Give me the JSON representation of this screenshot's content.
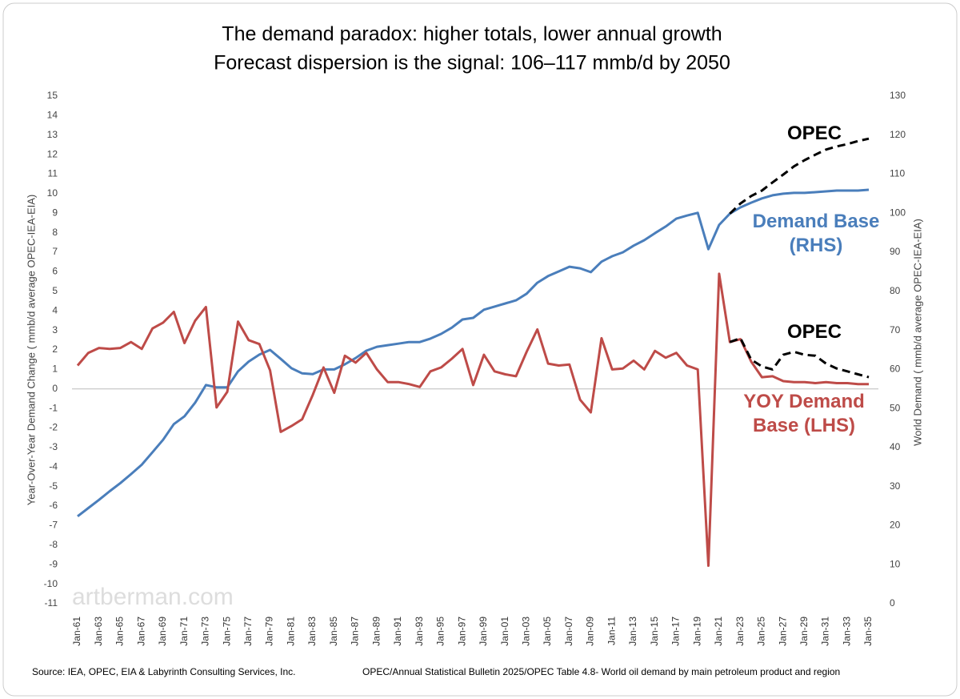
{
  "chart_data": {
    "type": "line",
    "title": "The demand paradox: higher totals, lower annual growth",
    "subtitle": "Forecast dispersion is the signal: 106–117 mmb/d by 2050",
    "y_label": "Year-Over-Year Demand Change ( mmb/d average OPEC-IEA-EIA)",
    "y2_label": "World Demand ( mmb/d average OPEC-IEA-EIA)",
    "watermark": "artberman.com",
    "source_left": "Source: IEA, OPEC, EIA  & Labyrinth Consulting Services, Inc.",
    "source_right": "OPEC/Annual Statistical Bulletin 2025/OPEC Table 4.8- World oil demand by main petroleum product and region",
    "categories": [
      "Jan-61",
      null,
      "Jan-63",
      null,
      "Jan-65",
      null,
      "Jan-67",
      null,
      "Jan-69",
      null,
      "Jan-71",
      null,
      "Jan-73",
      null,
      "Jan-75",
      null,
      "Jan-77",
      null,
      "Jan-79",
      null,
      "Jan-81",
      null,
      "Jan-83",
      null,
      "Jan-85",
      null,
      "Jan-87",
      null,
      "Jan-89",
      null,
      "Jan-91",
      null,
      "Jan-93",
      null,
      "Jan-95",
      null,
      "Jan-97",
      null,
      "Jan-99",
      null,
      "Jan-01",
      null,
      "Jan-03",
      null,
      "Jan-05",
      null,
      "Jan-07",
      null,
      "Jan-09",
      null,
      "Jan-11",
      null,
      "Jan-13",
      null,
      "Jan-15",
      null,
      "Jan-17",
      null,
      "Jan-19",
      null,
      "Jan-21",
      null,
      "Jan-23",
      null,
      "Jan-25",
      null,
      "Jan-27",
      null,
      "Jan-29",
      null,
      "Jan-31",
      null,
      "Jan-33",
      null,
      "Jan-35"
    ],
    "ylim": [
      -11,
      15
    ],
    "yticks": [
      -11,
      -10,
      -9,
      -8,
      -7,
      -6,
      -5,
      -4,
      -3,
      -2,
      -1,
      0,
      1,
      2,
      3,
      4,
      5,
      6,
      7,
      8,
      9,
      10,
      11,
      12,
      13,
      14,
      15
    ],
    "y2lim": [
      0,
      130
    ],
    "y2ticks": [
      0,
      10,
      20,
      30,
      40,
      50,
      60,
      70,
      80,
      90,
      100,
      110,
      120,
      130
    ],
    "series": [
      {
        "name": "Demand Base (RHS)",
        "color": "#4a7ebb",
        "axis": "y2",
        "values": [
          22.4,
          24.5,
          26.6,
          28.8,
          30.9,
          33.2,
          35.6,
          38.8,
          42.0,
          46.0,
          48.0,
          51.5,
          56.0,
          55.4,
          55.4,
          59.5,
          62.0,
          63.8,
          65.0,
          62.7,
          60.3,
          59.0,
          58.8,
          60.0,
          60.0,
          61.3,
          62.9,
          64.8,
          65.8,
          66.2,
          66.6,
          67.0,
          67.0,
          67.9,
          69.1,
          70.7,
          72.8,
          73.2,
          75.3,
          76.1,
          76.9,
          77.7,
          79.4,
          82.2,
          83.9,
          85.1,
          86.3,
          85.9,
          84.9,
          87.6,
          89.0,
          90.0,
          91.7,
          93.1,
          94.9,
          96.6,
          98.6,
          99.4,
          100.1,
          90.8,
          97.0,
          99.9,
          101.5,
          102.7,
          103.8,
          104.6,
          105.0,
          105.2,
          105.2,
          105.4,
          105.6,
          105.8,
          105.8,
          105.8,
          106.0
        ]
      },
      {
        "name": "OPEC",
        "color": "#000000",
        "axis": "y2",
        "dashed": true,
        "values": [
          null,
          null,
          null,
          null,
          null,
          null,
          null,
          null,
          null,
          null,
          null,
          null,
          null,
          null,
          null,
          null,
          null,
          null,
          null,
          null,
          null,
          null,
          null,
          null,
          null,
          null,
          null,
          null,
          null,
          null,
          null,
          null,
          null,
          null,
          null,
          null,
          null,
          null,
          null,
          null,
          null,
          null,
          null,
          null,
          null,
          null,
          null,
          null,
          null,
          null,
          null,
          null,
          null,
          null,
          null,
          null,
          null,
          null,
          null,
          null,
          null,
          99.9,
          102.5,
          104.4,
          105.8,
          107.9,
          109.9,
          112.0,
          113.6,
          115.0,
          116.3,
          117.1,
          117.7,
          118.5,
          119.1
        ]
      },
      {
        "name": "YOY Demand Base (LHS)",
        "color": "#be4b48",
        "axis": "y",
        "values": [
          1.2,
          1.85,
          2.1,
          2.05,
          2.1,
          2.4,
          2.05,
          3.1,
          3.4,
          3.95,
          2.35,
          3.5,
          4.2,
          -0.95,
          -0.15,
          3.45,
          2.5,
          2.3,
          0.95,
          -2.2,
          -1.9,
          -1.55,
          -0.3,
          1.1,
          -0.2,
          1.7,
          1.35,
          1.85,
          1.0,
          0.35,
          0.35,
          0.25,
          0.1,
          0.9,
          1.1,
          1.55,
          2.05,
          0.2,
          1.75,
          0.9,
          0.75,
          0.65,
          1.9,
          3.05,
          1.3,
          1.2,
          1.25,
          -0.55,
          -1.2,
          2.6,
          1.0,
          1.05,
          1.45,
          1.0,
          1.95,
          1.6,
          1.85,
          1.2,
          1.0,
          -9.05,
          5.9,
          2.4,
          2.55,
          1.4,
          0.6,
          0.65,
          0.4,
          0.35,
          0.35,
          0.3,
          0.35,
          0.3,
          0.3,
          0.25,
          0.25
        ]
      },
      {
        "name": "OPEC",
        "color": "#000000",
        "axis": "y",
        "dashed": true,
        "values": [
          null,
          null,
          null,
          null,
          null,
          null,
          null,
          null,
          null,
          null,
          null,
          null,
          null,
          null,
          null,
          null,
          null,
          null,
          null,
          null,
          null,
          null,
          null,
          null,
          null,
          null,
          null,
          null,
          null,
          null,
          null,
          null,
          null,
          null,
          null,
          null,
          null,
          null,
          null,
          null,
          null,
          null,
          null,
          null,
          null,
          null,
          null,
          null,
          null,
          null,
          null,
          null,
          null,
          null,
          null,
          null,
          null,
          null,
          null,
          null,
          null,
          2.4,
          2.6,
          1.5,
          1.15,
          1.0,
          1.75,
          1.9,
          1.75,
          1.7,
          1.3,
          1.05,
          0.9,
          0.75,
          0.6
        ]
      }
    ]
  }
}
